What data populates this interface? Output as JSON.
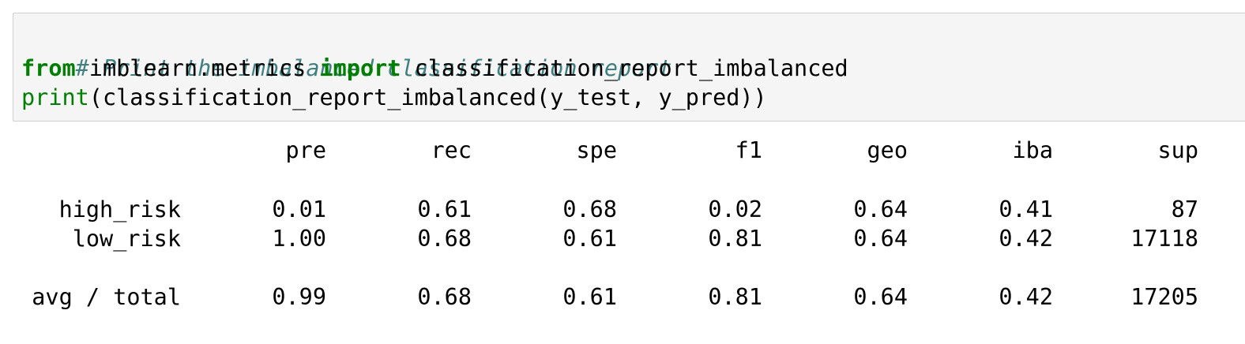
{
  "code": {
    "comment": "# Print the imbalanced classification report",
    "line2": {
      "kw_from": "from",
      "module": " imblearn.metrics ",
      "kw_import": "import",
      "name": " classification_report_imbalanced"
    },
    "line3": {
      "builtin": "print",
      "rest": "(classification_report_imbalanced(y_test, y_pred))"
    }
  },
  "report": {
    "columns": [
      "pre",
      "rec",
      "spe",
      "f1",
      "geo",
      "iba",
      "sup"
    ],
    "rows": [
      {
        "label": "high_risk",
        "values": [
          "0.01",
          "0.61",
          "0.68",
          "0.02",
          "0.64",
          "0.41",
          "87"
        ]
      },
      {
        "label": "low_risk",
        "values": [
          "1.00",
          "0.68",
          "0.61",
          "0.81",
          "0.64",
          "0.42",
          "17118"
        ]
      }
    ],
    "avg": {
      "label": "avg / total",
      "values": [
        "0.99",
        "0.68",
        "0.61",
        "0.81",
        "0.64",
        "0.42",
        "17205"
      ]
    }
  }
}
